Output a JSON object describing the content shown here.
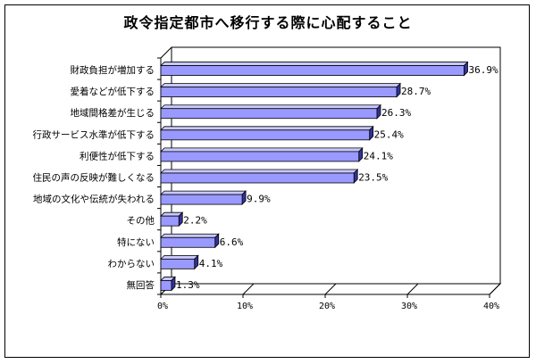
{
  "chart_data": {
    "type": "bar",
    "orientation": "horizontal",
    "title": "政令指定都市へ移行する際に心配すること",
    "categories": [
      "財政負担が増加する",
      "愛着などが低下する",
      "地域間格差が生じる",
      "行政サービス水準が低下する",
      "利便性が低下する",
      "住民の声の反映が難しくなる",
      "地域の文化や伝統が失われる",
      "その他",
      "特にない",
      "わからない",
      "無回答"
    ],
    "values": [
      36.9,
      28.7,
      26.3,
      25.4,
      24.1,
      23.5,
      9.9,
      2.2,
      6.6,
      4.1,
      1.3
    ],
    "value_labels": [
      "36.9%",
      "28.7%",
      "26.3%",
      "25.4%",
      "24.1%",
      "23.5%",
      "9.9%",
      "2.2%",
      "6.6%",
      "4.1%",
      "1.3%"
    ],
    "xlim": [
      0,
      40
    ],
    "xticks": [
      0,
      10,
      20,
      30,
      40
    ],
    "xtick_labels": [
      "0%",
      "10%",
      "20%",
      "30%",
      "40%"
    ],
    "xlabel": "",
    "ylabel": "",
    "grid": false,
    "legend": "none",
    "colors": {
      "bar_front": "#9999ff",
      "bar_top": "#c8c8ff",
      "bar_side": "#333399",
      "bar_outline": "#000000"
    }
  }
}
